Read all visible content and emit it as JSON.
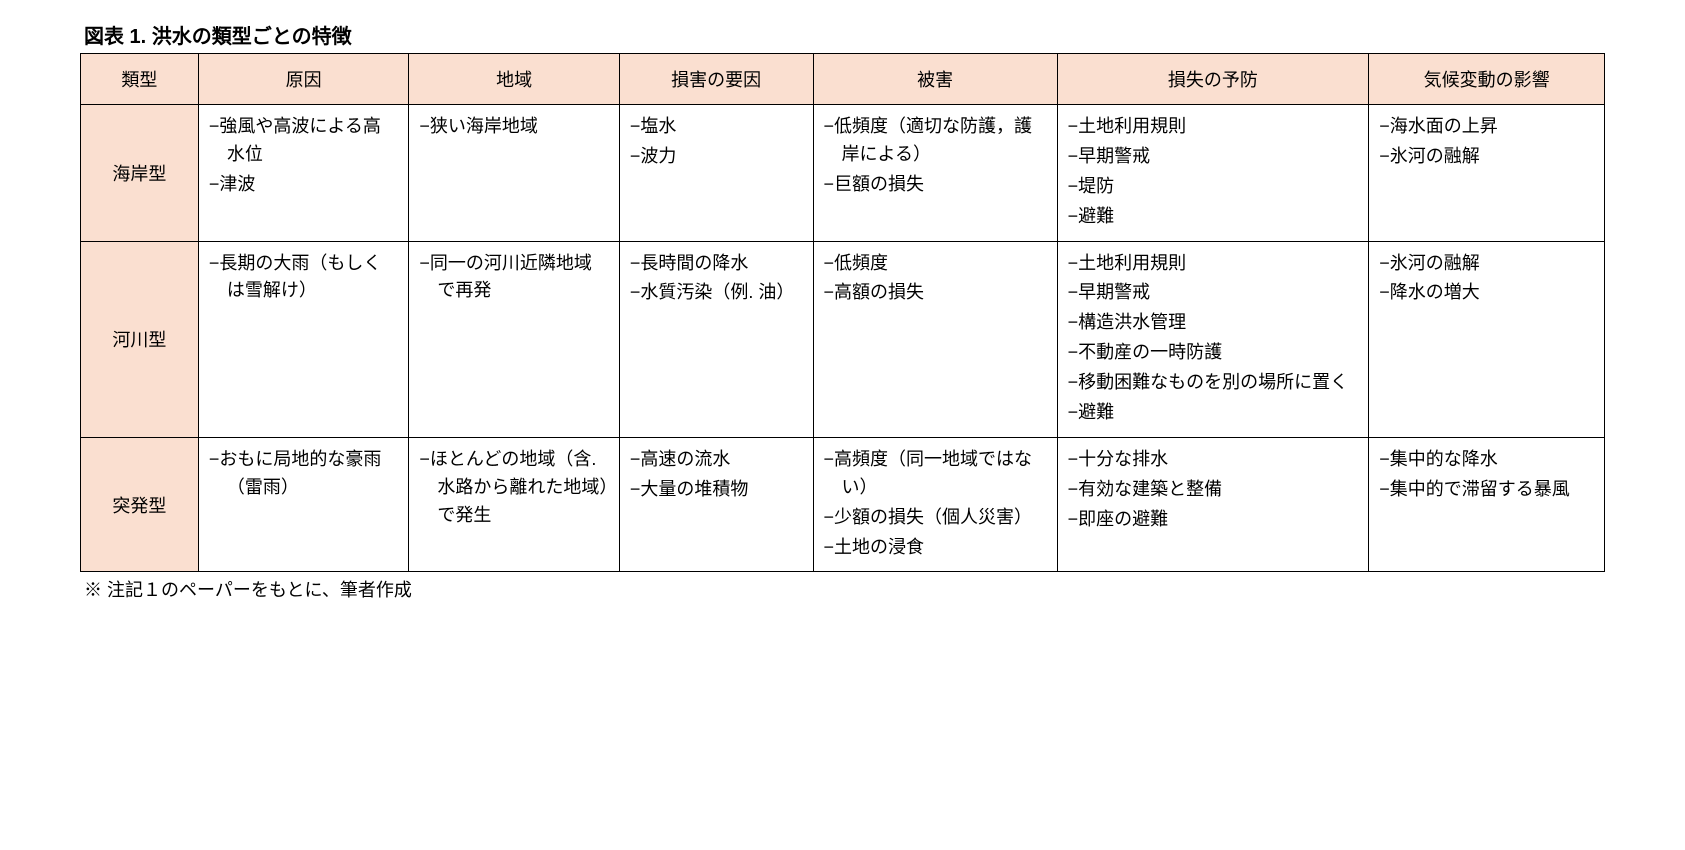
{
  "table": {
    "title": "図表 1.  洪水の類型ごとの特徴",
    "columns": [
      "類型",
      "原因",
      "地域",
      "損害の要因",
      "被害",
      "損失の予防",
      "気候変動の影響"
    ],
    "rows": [
      {
        "type": "海岸型",
        "cause": [
          "強風や高波による高水位",
          "津波"
        ],
        "region": [
          "狭い海岸地域"
        ],
        "factor": [
          "塩水",
          "波力"
        ],
        "damage": [
          "低頻度（適切な防護，護岸による）",
          "巨額の損失"
        ],
        "prevent": [
          "土地利用規則",
          "早期警戒",
          "堤防",
          "避難"
        ],
        "climate": [
          "海水面の上昇",
          "氷河の融解"
        ]
      },
      {
        "type": "河川型",
        "cause": [
          "長期の大雨（もしくは雪解け）"
        ],
        "region": [
          "同一の河川近隣地域で再発"
        ],
        "factor": [
          "長時間の降水",
          "水質汚染（例. 油）"
        ],
        "damage": [
          "低頻度",
          "高額の損失"
        ],
        "prevent": [
          "土地利用規則",
          "早期警戒",
          "構造洪水管理",
          "不動産の一時防護",
          "移動困難なものを別の場所に置く",
          "避難"
        ],
        "climate": [
          "氷河の融解",
          "降水の増大"
        ]
      },
      {
        "type": "突発型",
        "cause": [
          "おもに局地的な豪雨（雷雨）"
        ],
        "region": [
          "ほとんどの地域（含. 水路から離れた地域）で発生"
        ],
        "factor": [
          "高速の流水",
          "大量の堆積物"
        ],
        "damage": [
          "高頻度（同一地域ではない）",
          "少額の損失（個人災害）",
          "土地の浸食"
        ],
        "prevent": [
          "十分な排水",
          "有効な建築と整備",
          "即座の避難"
        ],
        "climate": [
          "集中的な降水",
          "集中的で滞留する暴風"
        ]
      }
    ],
    "footnote": "※ 注記１のペーパーをもとに、筆者作成",
    "styling": {
      "header_bg_color": "#fadfd0",
      "border_color": "#000000",
      "text_color": "#000000",
      "background_color": "#ffffff",
      "title_fontsize": 20,
      "body_fontsize": 18,
      "column_widths_pct": [
        7,
        12.5,
        12.5,
        11.5,
        14.5,
        18.5,
        14
      ],
      "bullet_char": "−"
    }
  }
}
